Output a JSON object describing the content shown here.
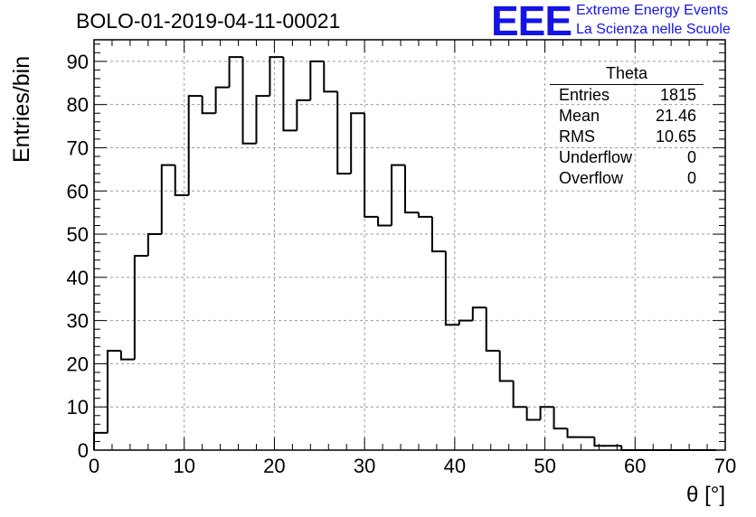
{
  "title": "BOLO-01-2019-04-11-00021",
  "logo": {
    "mark": "EEE",
    "line1": "Extreme Energy Events",
    "line2": "La Scienza nelle Scuole",
    "color": "#1414e6"
  },
  "stats": {
    "title": "Theta",
    "rows": [
      {
        "label": "Entries",
        "value": "1815"
      },
      {
        "label": "Mean",
        "value": "21.46"
      },
      {
        "label": "RMS",
        "value": "10.65"
      },
      {
        "label": "Underflow",
        "value": "0"
      },
      {
        "label": "Overflow",
        "value": "0"
      }
    ]
  },
  "chart_data": {
    "type": "histogram",
    "title": "BOLO-01-2019-04-11-00021",
    "xlabel": "θ [°]",
    "ylabel": "Entries/bin",
    "xlim": [
      0,
      70
    ],
    "ylim": [
      0,
      95
    ],
    "xticks": [
      0,
      10,
      20,
      30,
      40,
      50,
      60,
      70
    ],
    "yticks": [
      0,
      10,
      20,
      30,
      40,
      50,
      60,
      70,
      80,
      90
    ],
    "grid": true,
    "bin_width": 1.5,
    "bin_edges_start": 0,
    "values": [
      4,
      23,
      21,
      45,
      50,
      66,
      59,
      82,
      78,
      84,
      91,
      71,
      82,
      91,
      74,
      81,
      90,
      83,
      64,
      78,
      54,
      52,
      66,
      55,
      54,
      46,
      29,
      30,
      33,
      23,
      16,
      10,
      7,
      10,
      5,
      3,
      3,
      1,
      1,
      0,
      0,
      0,
      0,
      0,
      0,
      0
    ]
  }
}
